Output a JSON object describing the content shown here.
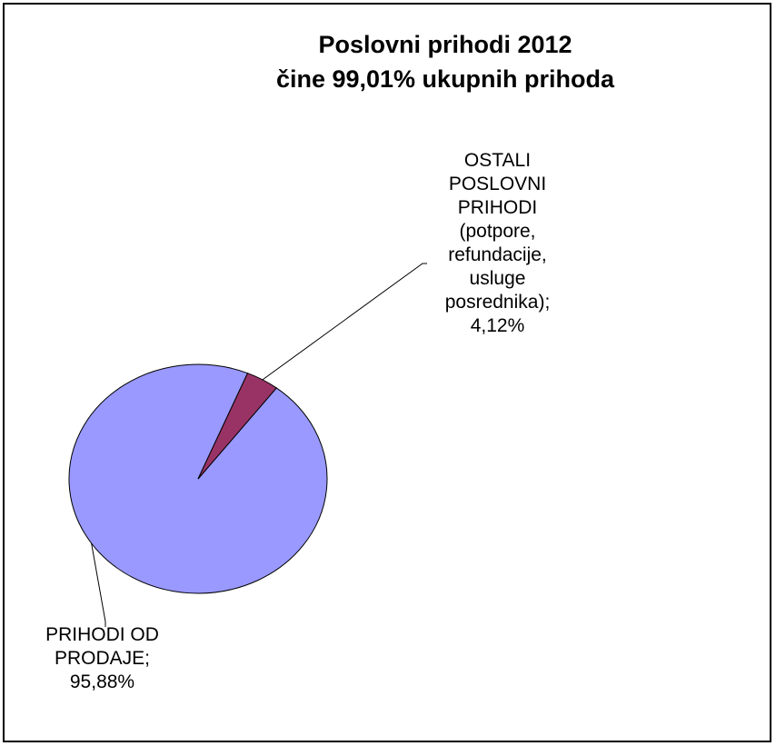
{
  "chart_data": {
    "type": "pie",
    "title_lines": [
      "Poslovni prihodi 2012",
      "čine 99,01% ukupnih prihoda"
    ],
    "slices": [
      {
        "label_lines": [
          "PRIHODI OD",
          "PRODAJE;",
          "95,88%"
        ],
        "value": 95.88,
        "color": "#9999FF"
      },
      {
        "label_lines": [
          "OSTALI",
          "POSLOVNI",
          "PRIHODI",
          "(potpore,",
          "refundacije,",
          "usluge",
          "posrednika);",
          "4,12%"
        ],
        "value": 4.12,
        "color": "#993366"
      }
    ],
    "legend": false,
    "grid": false
  }
}
